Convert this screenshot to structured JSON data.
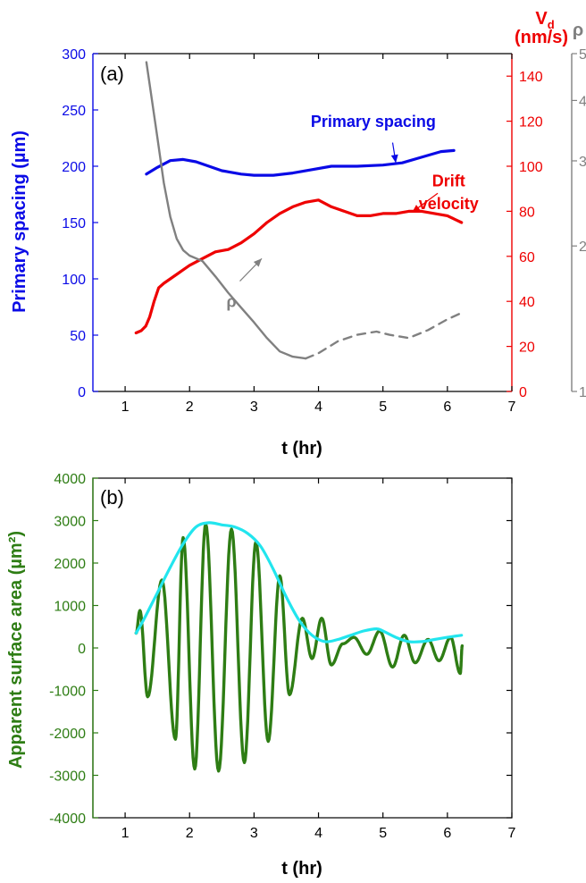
{
  "colors": {
    "blue": "#0a0ae6",
    "red": "#ee0000",
    "gray": "#808080",
    "green": "#2e7d14",
    "cyan": "#22e5ee",
    "axis": "#000000"
  },
  "chart_data": [
    {
      "type": "line",
      "panel_label": "(a)",
      "xlabel": "t (hr)",
      "xlim": [
        0.5,
        7
      ],
      "xticks": [
        1,
        2,
        3,
        4,
        5,
        6,
        7
      ],
      "left_axis": {
        "label": "Primary spacing (µm)",
        "ylim": [
          0,
          300
        ],
        "ticks": [
          0,
          50,
          100,
          150,
          200,
          250,
          300
        ]
      },
      "right_axis": {
        "label_main": "V",
        "label_sub": "d",
        "label_unit": "(nm/s)",
        "ylim": [
          0,
          150
        ],
        "ticks": [
          0,
          20,
          40,
          60,
          80,
          100,
          120,
          140
        ]
      },
      "rho_axis": {
        "label": "ρ",
        "scale": "log",
        "ylim": [
          1,
          5
        ],
        "ticks": [
          1,
          2,
          3,
          4,
          5
        ]
      },
      "series": [
        {
          "key": "spacing",
          "axis": "left",
          "style": "solid",
          "x": [
            1.33,
            1.5,
            1.7,
            1.9,
            2.1,
            2.3,
            2.5,
            2.8,
            3.0,
            3.3,
            3.6,
            3.9,
            4.2,
            4.6,
            5.0,
            5.3,
            5.6,
            5.9,
            6.1
          ],
          "y": [
            193,
            199,
            205,
            206,
            204,
            200,
            196,
            193,
            192,
            192,
            194,
            197,
            200,
            200,
            201,
            203,
            208,
            213,
            214
          ]
        },
        {
          "key": "drift",
          "axis": "right",
          "style": "solid",
          "x": [
            1.17,
            1.25,
            1.32,
            1.38,
            1.45,
            1.52,
            1.6,
            1.7,
            1.8,
            1.9,
            2.0,
            2.2,
            2.4,
            2.6,
            2.8,
            3.0,
            3.2,
            3.4,
            3.6,
            3.8,
            4.0,
            4.2,
            4.4,
            4.6,
            4.8,
            5.0,
            5.2,
            5.4,
            5.6,
            5.8,
            6.0,
            6.22
          ],
          "y": [
            26,
            27,
            29,
            33,
            40,
            46,
            48,
            50,
            52,
            54,
            56,
            59,
            62,
            63,
            66,
            70,
            75,
            79,
            82,
            84,
            85,
            82,
            80,
            78,
            78,
            79,
            79,
            80,
            80,
            79,
            78,
            75
          ]
        },
        {
          "key": "rho",
          "axis": "rho",
          "style": "solid",
          "x": [
            1.33,
            1.4,
            1.5,
            1.6,
            1.7,
            1.8,
            1.9,
            2.0,
            2.2,
            2.4,
            2.6,
            2.8,
            3.0,
            3.2,
            3.4,
            3.6,
            3.8
          ],
          "y": [
            4.8,
            4.15,
            3.35,
            2.7,
            2.3,
            2.07,
            1.96,
            1.91,
            1.86,
            1.73,
            1.6,
            1.49,
            1.39,
            1.29,
            1.21,
            1.18,
            1.17
          ]
        },
        {
          "key": "rho-dashed",
          "axis": "rho",
          "style": "dashed",
          "x": [
            3.8,
            4.0,
            4.3,
            4.6,
            4.9,
            5.1,
            5.4,
            5.7,
            6.0,
            6.2
          ],
          "y": [
            1.17,
            1.2,
            1.27,
            1.31,
            1.33,
            1.31,
            1.29,
            1.34,
            1.41,
            1.45
          ]
        }
      ],
      "annotations": [
        {
          "key": "primary-spacing",
          "text": "Primary spacing",
          "color": "blue",
          "pos": [
            4.85,
            235
          ],
          "arrow_from": [
            5.15,
            221
          ],
          "arrow_to": [
            5.2,
            203
          ],
          "text_axis": "left"
        },
        {
          "key": "drift-line1",
          "text": "Drift",
          "color": "red",
          "pos": [
            6.02,
            182
          ],
          "text_axis": "left"
        },
        {
          "key": "drift-line2",
          "text": "velocity",
          "color": "red",
          "pos": [
            6.02,
            162
          ],
          "arrow_from": [
            5.85,
            176
          ],
          "arrow_to": [
            5.45,
            159
          ],
          "text_axis": "left"
        },
        {
          "key": "rho-label",
          "text": "ρ",
          "color": "gray",
          "pos": [
            2.65,
            75
          ],
          "arrow_from": [
            2.78,
            98
          ],
          "arrow_to": [
            3.12,
            118
          ],
          "text_axis": "left"
        }
      ]
    },
    {
      "type": "line",
      "panel_label": "(b)",
      "xlabel": "t (hr)",
      "ylabel": "Apparent surface area (µm²)",
      "xlim": [
        0.5,
        7
      ],
      "xticks": [
        1,
        2,
        3,
        4,
        5,
        6,
        7
      ],
      "ylim": [
        -4000,
        4000
      ],
      "yticks": [
        -4000,
        -3000,
        -2000,
        -1000,
        0,
        1000,
        2000,
        3000,
        4000
      ],
      "oscillation": {
        "t_start": 1.17,
        "t_end": 6.23,
        "peaks": [
          [
            1.23,
            880
          ],
          [
            1.35,
            -1150
          ],
          [
            1.57,
            1600
          ],
          [
            1.78,
            -2150
          ],
          [
            1.9,
            2600
          ],
          [
            2.08,
            -2850
          ],
          [
            2.25,
            2920
          ],
          [
            2.45,
            -2900
          ],
          [
            2.65,
            2800
          ],
          [
            2.85,
            -2700
          ],
          [
            3.03,
            2500
          ],
          [
            3.22,
            -2200
          ],
          [
            3.4,
            1700
          ],
          [
            3.55,
            -1100
          ],
          [
            3.75,
            700
          ],
          [
            3.9,
            -250
          ],
          [
            4.05,
            700
          ],
          [
            4.2,
            -400
          ],
          [
            4.38,
            100
          ],
          [
            4.55,
            250
          ],
          [
            4.75,
            -150
          ],
          [
            4.95,
            400
          ],
          [
            5.15,
            -450
          ],
          [
            5.33,
            300
          ],
          [
            5.5,
            -350
          ],
          [
            5.7,
            200
          ],
          [
            5.87,
            -300
          ],
          [
            6.05,
            250
          ],
          [
            6.2,
            -600
          ]
        ]
      },
      "envelope": {
        "x": [
          1.17,
          1.3,
          1.5,
          1.7,
          1.9,
          2.1,
          2.3,
          2.5,
          2.7,
          2.9,
          3.1,
          3.3,
          3.5,
          3.7,
          3.9,
          4.1,
          4.3,
          4.5,
          4.7,
          4.9,
          5.0,
          5.2,
          5.4,
          5.6,
          5.8,
          6.0,
          6.22
        ],
        "y": [
          350,
          700,
          1300,
          1900,
          2450,
          2850,
          2950,
          2900,
          2850,
          2700,
          2400,
          1850,
          1200,
          650,
          300,
          150,
          200,
          300,
          400,
          450,
          400,
          250,
          150,
          150,
          200,
          250,
          300
        ]
      }
    }
  ]
}
